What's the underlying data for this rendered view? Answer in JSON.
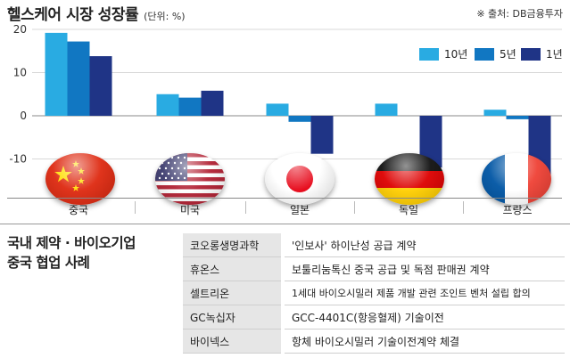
{
  "header": {
    "title": "헬스케어 시장 성장률",
    "unit": "(단위: %)",
    "source": "※ 출처: DB금융투자"
  },
  "chart_data": {
    "type": "bar",
    "title": "헬스케어 시장 성장률",
    "ylim": [
      -15,
      23
    ],
    "yticks": [
      20,
      10,
      0,
      -10
    ],
    "categories": [
      "중국",
      "미국",
      "일본",
      "독일",
      "프랑스"
    ],
    "series": [
      {
        "name": "10년",
        "color": "#29ABE2",
        "values": [
          19.2,
          5.0,
          2.8,
          2.8,
          1.4
        ]
      },
      {
        "name": "5년",
        "color": "#1177C2",
        "values": [
          17.2,
          4.2,
          -1.4,
          0,
          -0.8
        ]
      },
      {
        "name": "1년",
        "color": "#1F3486",
        "values": [
          13.8,
          5.8,
          -8.8,
          -12.0,
          -14.0
        ]
      }
    ],
    "legend_position": "top-right",
    "grid": false
  },
  "flags": [
    "china-flag-icon",
    "usa-flag-icon",
    "japan-flag-icon",
    "germany-flag-icon",
    "france-flag-icon"
  ],
  "section": {
    "title_line1": "국내 제약 · 바이오기업",
    "title_line2": "중국 협업 사례"
  },
  "cases": [
    {
      "company": "코오롱생명과학",
      "detail": "'인보사' 하이난성 공급 계약"
    },
    {
      "company": "휴온스",
      "detail": "보툴리눔톡신 중국 공급 및 독점 판매권 계약"
    },
    {
      "company": "셀트리온",
      "detail": "1세대 바이오시밀러 제품 개발 관련 조인트 벤처 설립 합의"
    },
    {
      "company": "GC녹십자",
      "detail": "GCC-4401C(항응혈제) 기술이전"
    },
    {
      "company": "바이넥스",
      "detail": "항체 바이오시밀러 기술이전계약 체결"
    }
  ]
}
